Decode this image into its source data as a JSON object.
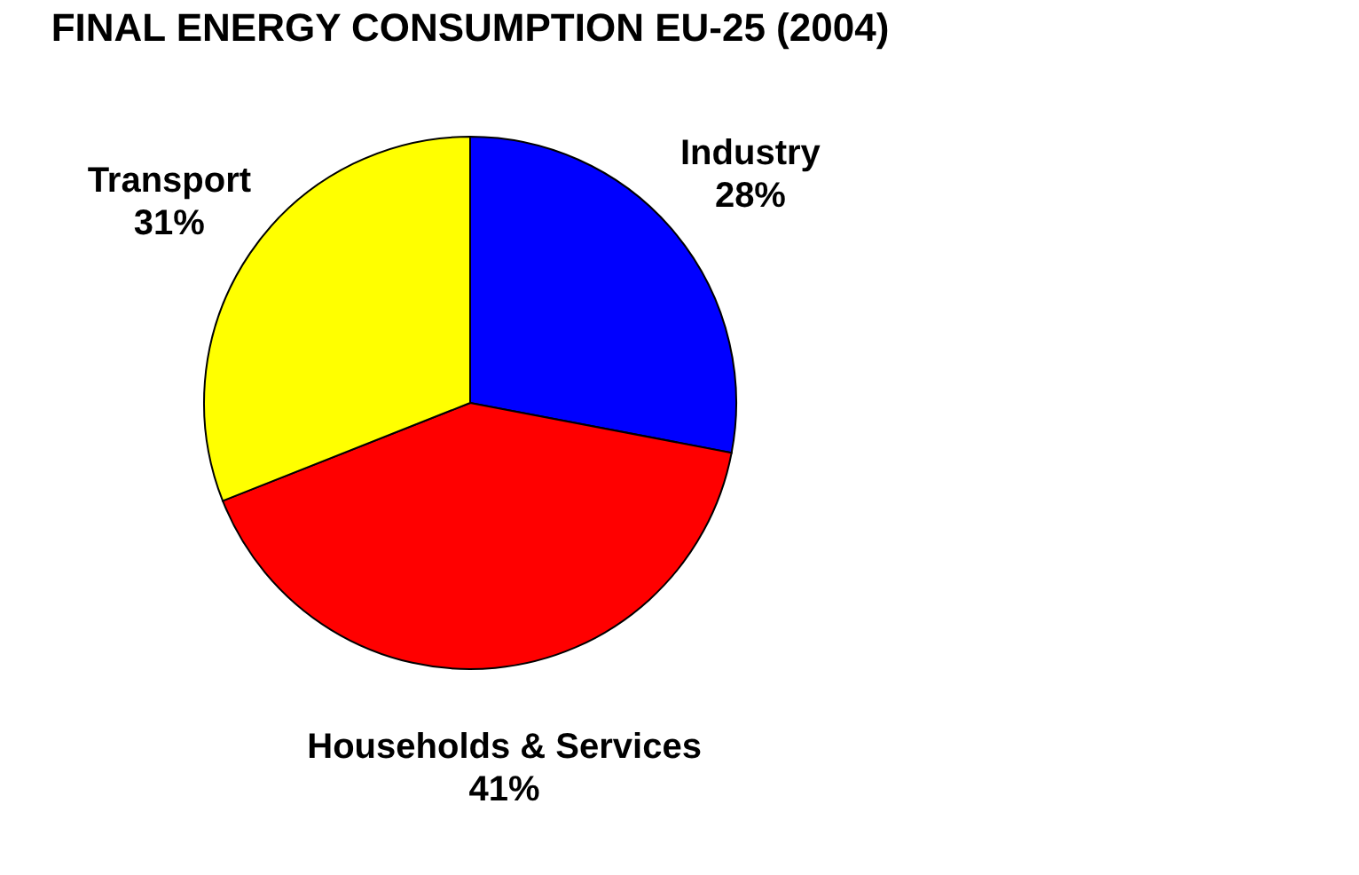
{
  "chart_data": {
    "type": "pie",
    "title": "FINAL ENERGY CONSUMPTION EU-25 (2004)",
    "categories": [
      "Industry",
      "Households & Services",
      "Transport"
    ],
    "values": [
      28,
      41,
      31
    ],
    "colors": [
      "#0000ff",
      "#ff0000",
      "#ffff00"
    ],
    "value_labels": [
      "28%",
      "41%",
      "31%"
    ],
    "legend": false
  }
}
